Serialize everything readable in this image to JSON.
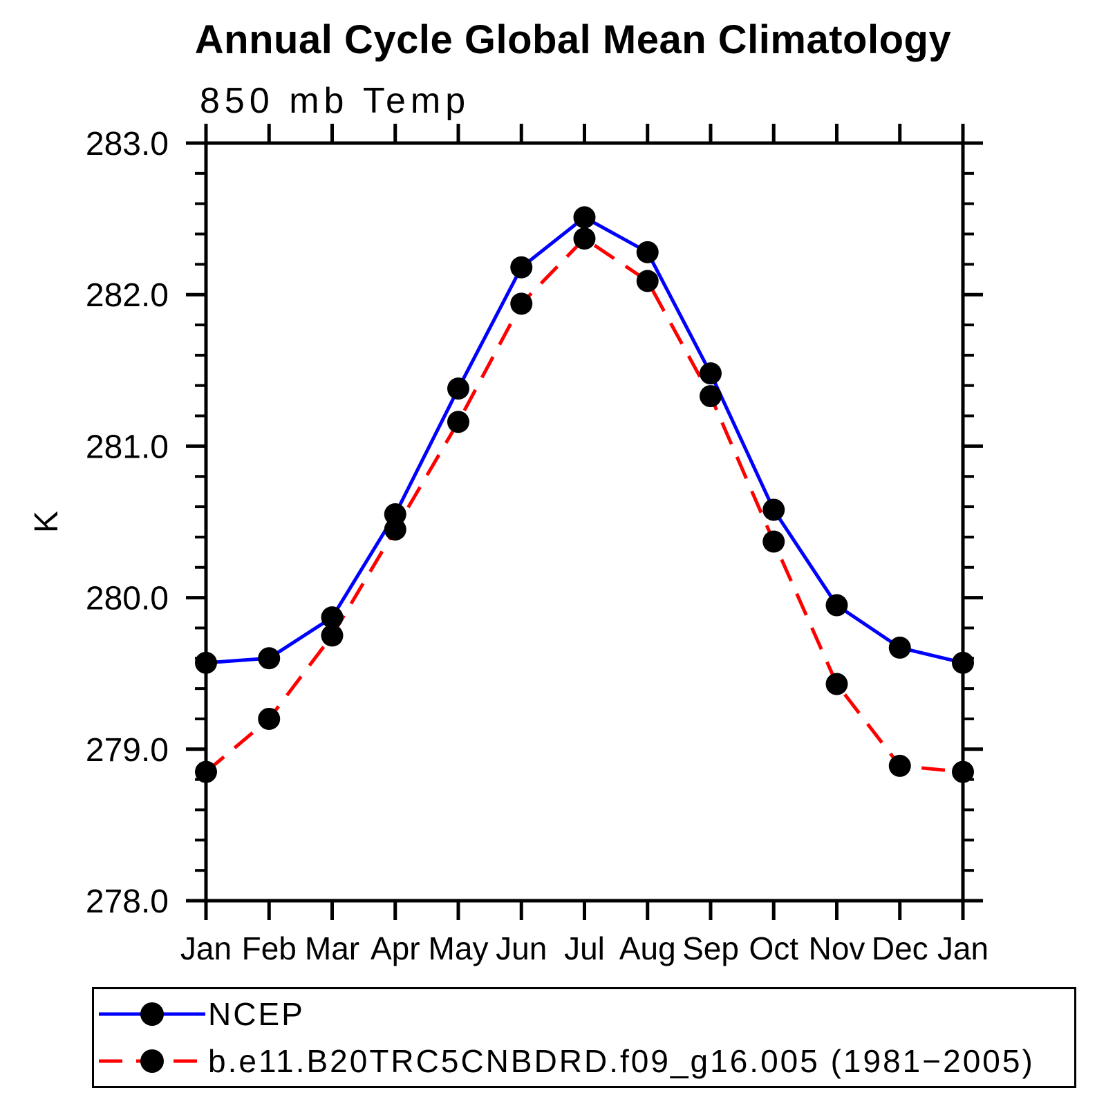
{
  "title": "Annual Cycle Global Mean Climatology",
  "subtitle": "850 mb Temp",
  "y_axis_title": "K",
  "chart_data": {
    "type": "line",
    "categories": [
      "Jan",
      "Feb",
      "Mar",
      "Apr",
      "May",
      "Jun",
      "Jul",
      "Aug",
      "Sep",
      "Oct",
      "Nov",
      "Dec",
      "Jan"
    ],
    "series": [
      {
        "name": "NCEP",
        "color": "#0000ff",
        "line_style": "solid",
        "marker": "filled-circle",
        "marker_color": "#000000",
        "values": [
          279.57,
          279.6,
          279.87,
          280.55,
          281.38,
          282.18,
          282.51,
          282.28,
          281.48,
          280.58,
          279.95,
          279.67,
          279.57
        ]
      },
      {
        "name": "b.e11.B20TRC5CNBDRD.f09_g16.005 (1981−2005)",
        "color": "#ff0000",
        "line_style": "dashed",
        "marker": "filled-circle",
        "marker_color": "#000000",
        "values": [
          278.85,
          279.2,
          279.75,
          280.45,
          281.16,
          281.94,
          282.37,
          282.09,
          281.33,
          280.37,
          279.43,
          278.89,
          278.85
        ]
      }
    ],
    "xlabel": "",
    "ylabel": "K",
    "ylim": [
      278.0,
      283.0
    ],
    "y_major_step": 1.0,
    "y_minor_step": 0.2,
    "y_tick_label_format": "one-decimal",
    "grid": false,
    "legend_position": "bottom-left-box",
    "axis_color": "#000000"
  }
}
